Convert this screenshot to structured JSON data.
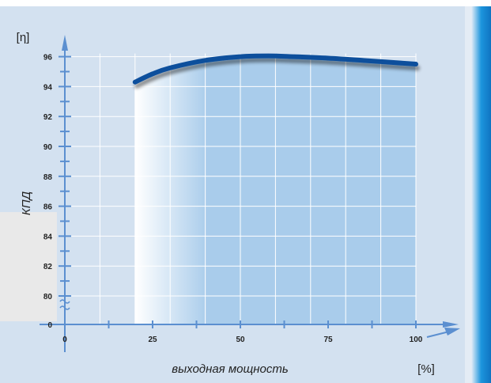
{
  "chart_data": {
    "type": "line",
    "title": "",
    "xlabel": "выходная мощность",
    "ylabel": "КПД",
    "x_unit_label": "[%]",
    "y_unit_label": "[η]",
    "x_ticks": [
      0,
      25,
      50,
      75,
      100
    ],
    "y_ticks": [
      80,
      82,
      84,
      86,
      88,
      90,
      92,
      94,
      96
    ],
    "y_zero_label": "0",
    "xlim": [
      0,
      110
    ],
    "ylim": [
      78,
      98
    ],
    "grid": true,
    "series": [
      {
        "x": [
          20,
          25,
          30,
          40,
          50,
          58,
          65,
          75,
          85,
          100
        ],
        "y": [
          94.3,
          94.85,
          95.25,
          95.75,
          96.0,
          96.05,
          96.0,
          95.9,
          95.75,
          95.5
        ]
      }
    ],
    "shaded_range": [
      20,
      100
    ],
    "colors": {
      "background": "#d3e1f0",
      "line": "#0d4f9c",
      "fill": "#a9cceb",
      "grid": "#ffffff",
      "axis": "#5b8fd0",
      "side_bar": "#1a8fd8"
    }
  }
}
